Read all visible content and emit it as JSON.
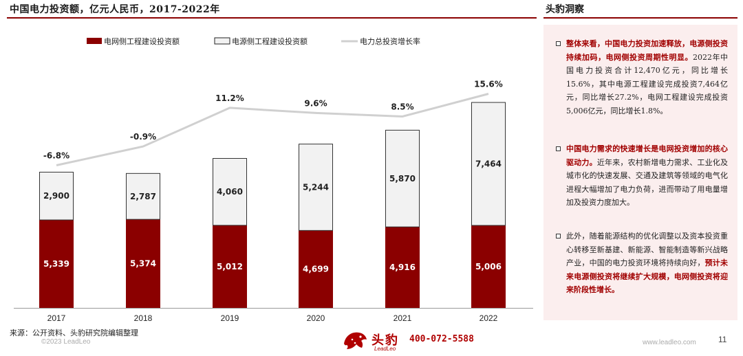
{
  "header": {
    "left_title": "中国电力投资额，亿元人民币，2017-2022年",
    "right_title": "头豹洞察"
  },
  "chart_data": {
    "type": "bar",
    "stacked": true,
    "categories": [
      "2017",
      "2018",
      "2019",
      "2020",
      "2021",
      "2022"
    ],
    "series": [
      {
        "name": "电网侧工程建设投资额",
        "values": [
          5339,
          5374,
          5012,
          4699,
          4916,
          5006
        ],
        "color": "#8b0000",
        "label_color": "#ffffff",
        "value_labels": [
          "5,339",
          "5,374",
          "5,012",
          "4,699",
          "4,916",
          "5,006"
        ]
      },
      {
        "name": "电源侧工程建设投资额",
        "values": [
          2900,
          2787,
          4060,
          5244,
          5870,
          7464
        ],
        "color": "#f2f2f2",
        "label_color": "#222222",
        "value_labels": [
          "2,900",
          "2,787",
          "4,060",
          "5,244",
          "5,870",
          "7,464"
        ]
      }
    ],
    "line": {
      "name": "电力总投资增长率",
      "values": [
        -6.8,
        -0.9,
        11.2,
        9.6,
        8.5,
        15.6
      ],
      "value_labels": [
        "-6.8%",
        "-0.9%",
        "11.2%",
        "9.6%",
        "8.5%",
        "15.6%"
      ],
      "color": "#d0d0d0"
    },
    "legend_position": "top",
    "grid": false
  },
  "insights": {
    "b1_hl": "整体来看，中国电力投资加速释放，电源侧投资持续加码，电网侧投资周期性明显。",
    "b1_text": "2022年中国电力投资合计12,470亿元，同比增长15.6%，其中电源工程建设完成投资7,464亿元，同比增长27.2%，电网工程建设完成投资5,006亿元，同比增长1.8%。",
    "b2_hl": "中国电力需求的快速增长是电网投资增加的核心驱动力。",
    "b2_text": "近年来，农村新增电力需求、工业化及城市化的快速发展、交通及建筑等领域的电气化进程大幅增加了电力负荷，进而带动了用电量增加及投资力度加大。",
    "b3_text": "此外，随着能源结构的优化调整以及资本投资重心转移至新基建、新能源、智能制造等新兴战略产业，中国的电力投资环境将持续向好，",
    "b3_hl": "预计未来电源侧投资将继续扩大规模，电网侧投资将迎来阶段性增长。"
  },
  "footer": {
    "source": "来源：公开资料、头豹研究院编辑整理",
    "copyright": "©2023 LeadLeo",
    "brand": "头豹",
    "brand_sub": "LeadLeo",
    "phone": "400-072-5588",
    "url": "www.leadleo.com",
    "page": "11"
  }
}
